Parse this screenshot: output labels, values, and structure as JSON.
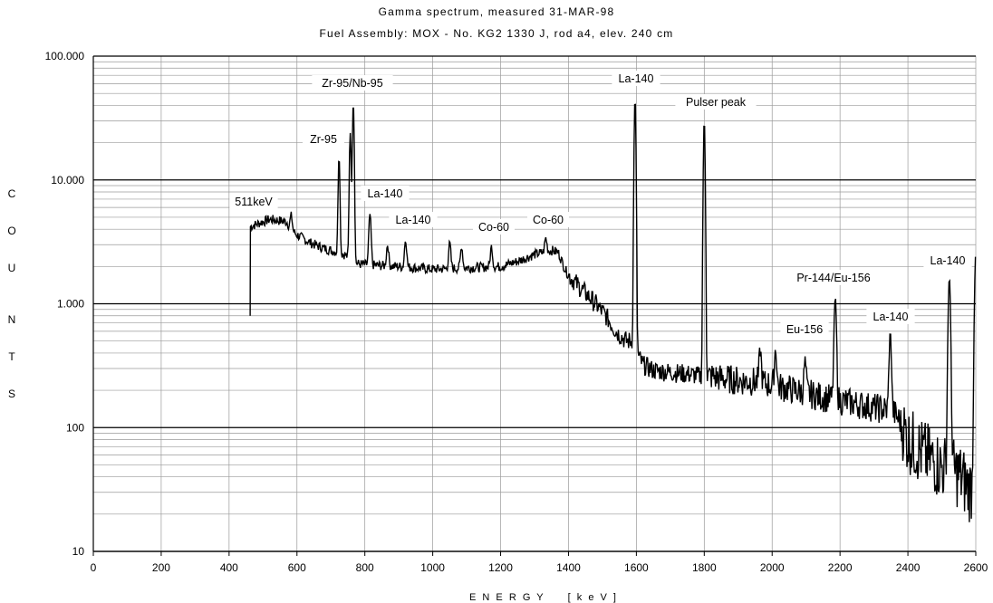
{
  "chart_data": {
    "type": "line",
    "title": "Gamma spectrum, measured  31-MAR-98",
    "subtitle": "Fuel Assembly: MOX - No. KG2 1330 J, rod a4,  elev.  240 cm",
    "xlabel": "E N E R G Y     [ k e V ]",
    "ylabel": [
      "C",
      "O",
      "U",
      "N",
      "T",
      "S"
    ],
    "xlim": [
      0,
      2600
    ],
    "ylim": [
      10,
      100000
    ],
    "y_scale": "log",
    "x_ticks": [
      0,
      200,
      400,
      600,
      800,
      1000,
      1200,
      1400,
      1600,
      1800,
      2000,
      2200,
      2400,
      2600
    ],
    "y_ticks": [
      {
        "value": 10,
        "label": "10"
      },
      {
        "value": 100,
        "label": "100"
      },
      {
        "value": 1000,
        "label": "1.000"
      },
      {
        "value": 10000,
        "label": "10.000"
      },
      {
        "value": 100000,
        "label": "100.000"
      }
    ],
    "grid": true,
    "baseline": [
      [
        462,
        800
      ],
      [
        463,
        4200
      ],
      [
        490,
        4500
      ],
      [
        520,
        4800
      ],
      [
        570,
        4600
      ],
      [
        580,
        4000
      ],
      [
        600,
        3600
      ],
      [
        640,
        3100
      ],
      [
        680,
        2800
      ],
      [
        720,
        2600
      ],
      [
        740,
        2500
      ],
      [
        760,
        2300
      ],
      [
        780,
        2100
      ],
      [
        820,
        2050
      ],
      [
        900,
        2000
      ],
      [
        1000,
        1900
      ],
      [
        1100,
        1950
      ],
      [
        1200,
        2000
      ],
      [
        1250,
        2200
      ],
      [
        1300,
        2500
      ],
      [
        1350,
        2700
      ],
      [
        1370,
        2600
      ],
      [
        1390,
        1900
      ],
      [
        1400,
        1700
      ],
      [
        1440,
        1300
      ],
      [
        1480,
        1000
      ],
      [
        1510,
        800
      ],
      [
        1540,
        600
      ],
      [
        1570,
        500
      ],
      [
        1590,
        500
      ],
      [
        1600,
        400
      ],
      [
        1620,
        320
      ],
      [
        1650,
        290
      ],
      [
        1700,
        280
      ],
      [
        1750,
        270
      ],
      [
        1790,
        260
      ],
      [
        1800,
        255
      ],
      [
        1820,
        260
      ],
      [
        1850,
        250
      ],
      [
        1900,
        240
      ],
      [
        1950,
        235
      ],
      [
        2000,
        220
      ],
      [
        2050,
        205
      ],
      [
        2100,
        190
      ],
      [
        2150,
        175
      ],
      [
        2200,
        165
      ],
      [
        2250,
        155
      ],
      [
        2300,
        145
      ],
      [
        2330,
        140
      ],
      [
        2360,
        130
      ],
      [
        2380,
        110
      ],
      [
        2400,
        80
      ],
      [
        2450,
        60
      ],
      [
        2500,
        48
      ],
      [
        2550,
        42
      ],
      [
        2580,
        32
      ],
      [
        2600,
        35
      ]
    ],
    "peaks": [
      {
        "energy": 583,
        "counts": 5200
      },
      {
        "energy": 724,
        "counts": 15500
      },
      {
        "energy": 757,
        "counts": 24000
      },
      {
        "energy": 766,
        "counts": 42000
      },
      {
        "energy": 815,
        "counts": 5300
      },
      {
        "energy": 867,
        "counts": 3000
      },
      {
        "energy": 920,
        "counts": 3300
      },
      {
        "energy": 1050,
        "counts": 3100
      },
      {
        "energy": 1085,
        "counts": 2900
      },
      {
        "energy": 1173,
        "counts": 2900
      },
      {
        "energy": 1333,
        "counts": 3400
      },
      {
        "energy": 1596,
        "counts": 45000
      },
      {
        "energy": 1800,
        "counts": 30000
      },
      {
        "energy": 1965,
        "counts": 420
      },
      {
        "energy": 2010,
        "counts": 430
      },
      {
        "energy": 2097,
        "counts": 340
      },
      {
        "energy": 2186,
        "counts": 1100
      },
      {
        "energy": 2348,
        "counts": 570
      },
      {
        "energy": 2522,
        "counts": 1600
      },
      {
        "energy": 2600,
        "counts": 2500
      }
    ],
    "annotations": [
      {
        "text": "511keV",
        "energy": 511
      },
      {
        "text": "Zr-95",
        "energy": 724
      },
      {
        "text": "Zr-95/Nb-95",
        "energy": 766
      },
      {
        "text": "La-140",
        "energy": 815
      },
      {
        "text": "La-140",
        "energy": 920
      },
      {
        "text": "Co-60",
        "energy": 1173
      },
      {
        "text": "Co-60",
        "energy": 1333
      },
      {
        "text": "La-140",
        "energy": 1596
      },
      {
        "text": "Pulser peak",
        "energy": 1800
      },
      {
        "text": "Eu-156",
        "energy": 2010
      },
      {
        "text": "Pr-144/Eu-156",
        "energy": 2186
      },
      {
        "text": "La-140",
        "energy": 2348
      },
      {
        "text": "La-140",
        "energy": 2522
      }
    ]
  }
}
